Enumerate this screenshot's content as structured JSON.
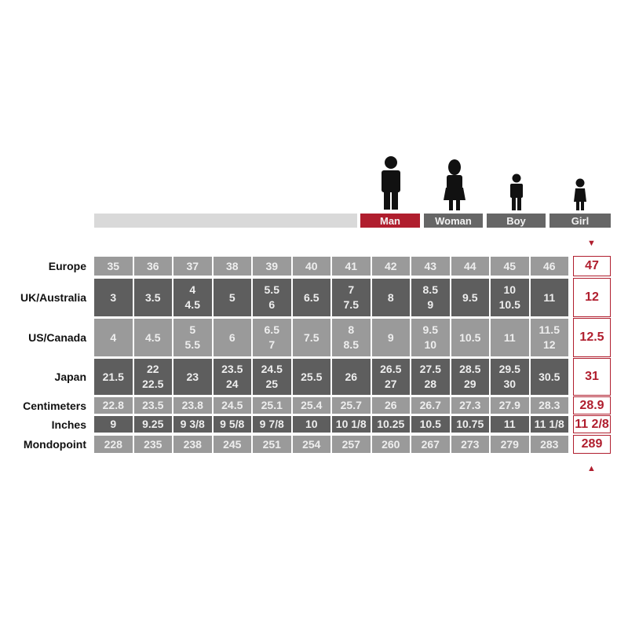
{
  "categories": [
    {
      "label": "Man",
      "active": true
    },
    {
      "label": "Woman",
      "active": false
    },
    {
      "label": "Boy",
      "active": false
    },
    {
      "label": "Girl",
      "active": false
    }
  ],
  "colors": {
    "accent": "#b01e2e",
    "light_cell": "#9a9a9a",
    "dark_cell": "#5e5e5e",
    "bar_gray": "#666666",
    "track": "#d9d9d9"
  },
  "arrows": {
    "top": "▼",
    "bottom": "▲"
  },
  "rows": [
    {
      "label": "Europe",
      "shade": "light",
      "values": [
        "35",
        "36",
        "37",
        "38",
        "39",
        "40",
        "41",
        "42",
        "43",
        "44",
        "45",
        "46"
      ],
      "highlight": "47"
    },
    {
      "label": "UK/Australia",
      "shade": "dark",
      "values": [
        "3",
        "3.5",
        "4\n4.5",
        "5",
        "5.5\n6",
        "6.5",
        "7\n7.5",
        "8",
        "8.5\n9",
        "9.5",
        "10\n10.5",
        "11"
      ],
      "highlight": "12"
    },
    {
      "label": "US/Canada",
      "shade": "light",
      "values": [
        "4",
        "4.5",
        "5\n5.5",
        "6",
        "6.5\n7",
        "7.5",
        "8\n8.5",
        "9",
        "9.5\n10",
        "10.5",
        "11",
        "11.5\n12"
      ],
      "highlight": "12.5"
    },
    {
      "label": "Japan",
      "shade": "dark",
      "values": [
        "21.5",
        "22\n22.5",
        "23",
        "23.5\n24",
        "24.5\n25",
        "25.5",
        "26",
        "26.5\n27",
        "27.5\n28",
        "28.5\n29",
        "29.5\n30",
        "30.5"
      ],
      "highlight": "31"
    },
    {
      "label": "Centimeters",
      "shade": "light",
      "values": [
        "22.8",
        "23.5",
        "23.8",
        "24.5",
        "25.1",
        "25.4",
        "25.7",
        "26",
        "26.7",
        "27.3",
        "27.9",
        "28.3"
      ],
      "highlight": "28.9"
    },
    {
      "label": "Inches",
      "shade": "dark",
      "values": [
        "9",
        "9.25",
        "9 3/8",
        "9 5/8",
        "9 7/8",
        "10",
        "10 1/8",
        "10.25",
        "10.5",
        "10.75",
        "11",
        "11 1/8"
      ],
      "highlight": "11 2/8"
    },
    {
      "label": "Mondopoint",
      "shade": "light",
      "values": [
        "228",
        "235",
        "238",
        "245",
        "251",
        "254",
        "257",
        "260",
        "267",
        "273",
        "279",
        "283"
      ],
      "highlight": "289"
    }
  ]
}
